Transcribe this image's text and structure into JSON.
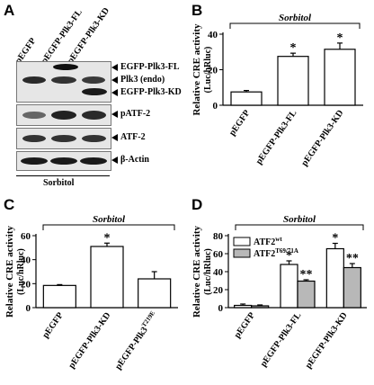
{
  "panels": {
    "A": {
      "letter": "A",
      "lanes": [
        "pEGFP",
        "pEGFP-Plk3-FL",
        "pEGFP-Plk3-KD"
      ],
      "labels": [
        "EGFP-Plk3-FL",
        "Plk3 (endo)",
        "EGFP-Plk3-KD",
        "pATF-2",
        "ATF-2",
        "β-Actin"
      ],
      "treatment": "Sorbitol"
    },
    "B": {
      "letter": "B",
      "treatment": "Sorbitol",
      "chart_data": {
        "type": "bar",
        "categories": [
          "pEGFP",
          "pEGFP-Plk3-FL",
          "pEGFP-Plk3-KD"
        ],
        "values": [
          7.5,
          27.5,
          31.5
        ],
        "errors": [
          0.8,
          1.8,
          3.5
        ],
        "significance": [
          "",
          "*",
          "*"
        ],
        "ylabel": "Relative CRE activity",
        "ylabel2": "(Luc/hRluc)",
        "ylim": [
          0,
          40
        ],
        "yticks": [
          "0",
          "20",
          "40"
        ],
        "fill": "#ffffff"
      }
    },
    "C": {
      "letter": "C",
      "treatment": "Sorbitol",
      "chart_data": {
        "type": "bar",
        "categories": [
          "pEGFP",
          "pEGFP-Plk3-KD",
          "pEGFP-Plk3"
        ],
        "category_superscripts": [
          "",
          "",
          "T219E"
        ],
        "values": [
          18.5,
          51,
          24
        ],
        "errors": [
          0.7,
          2.8,
          6
        ],
        "significance": [
          "",
          "*",
          ""
        ],
        "ylabel": "Relative CRE activity",
        "ylabel2": "(Luc/hRluc)",
        "ylim": [
          0,
          60
        ],
        "yticks": [
          "0",
          "20",
          "40",
          "60"
        ],
        "fill": "#ffffff"
      }
    },
    "D": {
      "letter": "D",
      "treatment": "Sorbitol",
      "chart_data": {
        "type": "bar",
        "categories": [
          "pEGFP",
          "pEGFP-Plk3-FL",
          "pEGFP-Plk3-KD"
        ],
        "series": [
          {
            "name": "ATF2",
            "superscript": "wt",
            "values": [
              2.5,
              48,
              65.5
            ],
            "errors": [
              1.5,
              4,
              6
            ],
            "significance": [
              "",
              "*",
              "*"
            ],
            "fill": "#ffffff"
          },
          {
            "name": "ATF2",
            "superscript": "T69/71A",
            "values": [
              2,
              29.5,
              44.5
            ],
            "errors": [
              1,
              1.5,
              4.5
            ],
            "significance": [
              "",
              "**",
              "**"
            ],
            "fill": "#b8b8b8"
          }
        ],
        "ylabel": "Relative CRE activity",
        "ylabel2": "(Luc/hRluc)",
        "ylim": [
          0,
          80
        ],
        "yticks": [
          "0",
          "20",
          "40",
          "60",
          "80"
        ],
        "legend": "top-left"
      }
    }
  }
}
